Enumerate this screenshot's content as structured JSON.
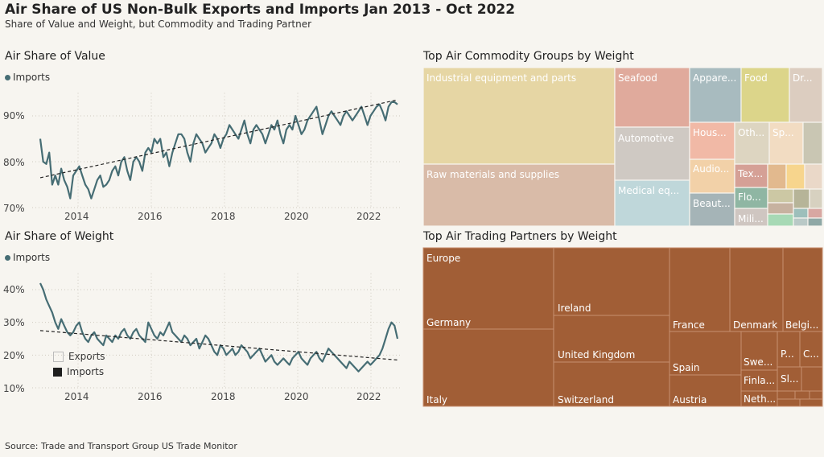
{
  "header": {
    "title": "Air Share of US Non-Bulk Exports and Imports Jan 2013 - Oct 2022",
    "subtitle": "Share of Value and Weight, but Commodity and Trading Partner"
  },
  "source": "Source: Trade and Transport Group US Trade Monitor",
  "colors": {
    "line": "#466d74",
    "trend": "#222222",
    "partner": "#a15e36"
  },
  "chart_data": [
    {
      "type": "line",
      "title": "Air Share of Value",
      "legend": "Imports",
      "x_ticks": [
        "2014",
        "2016",
        "2018",
        "2020",
        "2022"
      ],
      "y_ticks": [
        "70%",
        "80%",
        "90%"
      ],
      "ylim": [
        70,
        95
      ],
      "series": [
        {
          "name": "Imports",
          "x_start": "2013-01",
          "x_end": "2022-10",
          "values": [
            85,
            80,
            79.5,
            82,
            75,
            77,
            75,
            78.5,
            76,
            74.5,
            72,
            77,
            78,
            79,
            77,
            75,
            74,
            72,
            74,
            76,
            77,
            74.5,
            75,
            76,
            78,
            79,
            77,
            80,
            81,
            78,
            76,
            80,
            81,
            80,
            78,
            82,
            83,
            82,
            85,
            84,
            85,
            81,
            82,
            79,
            82,
            84,
            86,
            86,
            85,
            82,
            80,
            84,
            86,
            85,
            84,
            82,
            83,
            84,
            86,
            85,
            83,
            85,
            86,
            88,
            87,
            86,
            85,
            87,
            89,
            86,
            84,
            87,
            88,
            87,
            86,
            84,
            86,
            88,
            87,
            89,
            86,
            84,
            87,
            88,
            87,
            90,
            88,
            86,
            87,
            89,
            90,
            91,
            92,
            89,
            86,
            88,
            90,
            91,
            90,
            89,
            88,
            90,
            91,
            90,
            89,
            90,
            91,
            92,
            90,
            88,
            90,
            91,
            92,
            92.5,
            91,
            89,
            92,
            93,
            93,
            92.5
          ]
        }
      ],
      "trend": [
        76.5,
        93.5
      ]
    },
    {
      "type": "line",
      "title": "Air Share of Weight",
      "legend": "Imports",
      "x_ticks": [
        "2014",
        "2016",
        "2018",
        "2020",
        "2022"
      ],
      "y_ticks": [
        "10%",
        "20%",
        "30%",
        "40%"
      ],
      "ylim": [
        10,
        45
      ],
      "series": [
        {
          "name": "Imports",
          "x_start": "2013-01",
          "x_end": "2022-10",
          "values": [
            42,
            40,
            37,
            35,
            33,
            30,
            28,
            31,
            29,
            27,
            26,
            27,
            29,
            30,
            27,
            25,
            24,
            26,
            27,
            25,
            24,
            23,
            26,
            25,
            24,
            26,
            25,
            27,
            28,
            26,
            25,
            27,
            28,
            26,
            25,
            24,
            30,
            28,
            26,
            25,
            27,
            26,
            28,
            30,
            27,
            26,
            25,
            24,
            26,
            25,
            23,
            24,
            25,
            22,
            24,
            26,
            25,
            23,
            21,
            20,
            23,
            22,
            20,
            21,
            22,
            20,
            21,
            23,
            22,
            21,
            19,
            20,
            21,
            22,
            20,
            18,
            19,
            20,
            18,
            17,
            18,
            19,
            18,
            17,
            19,
            20,
            21,
            19,
            18,
            17,
            19,
            20,
            21,
            19,
            18,
            20,
            22,
            21,
            20,
            19,
            18,
            17,
            16,
            18,
            17,
            16,
            15,
            16,
            17,
            18,
            17,
            18,
            19,
            20,
            22,
            25,
            28,
            30,
            29,
            25
          ]
        }
      ],
      "trend": [
        27.5,
        18.5
      ],
      "categories_legend": [
        "Exports",
        "Imports"
      ]
    },
    {
      "type": "treemap",
      "title": "Top Air Commodity Groups by Weight",
      "labels": [
        "Industrial equipment and parts",
        "Raw materials and supplies",
        "Seafood",
        "Automotive",
        "Medical eq...",
        "Appare...",
        "Food",
        "Dr...",
        "Hous...",
        "Oth...",
        "Sp...",
        "Audio...",
        "Tex...",
        "Beaut...",
        "Flo...",
        "Mili..."
      ]
    },
    {
      "type": "treemap",
      "title": "Top Air Trading Partners by Weight",
      "labels": [
        "Europe",
        "Germany",
        "Italy",
        "Ireland",
        "United Kingdom",
        "Switzerland",
        "France",
        "Spain",
        "Austria",
        "Denmark",
        "Belgi...",
        "Swe...",
        "Finla...",
        "Neth...",
        "P...",
        "C...",
        "Sl..."
      ]
    }
  ]
}
